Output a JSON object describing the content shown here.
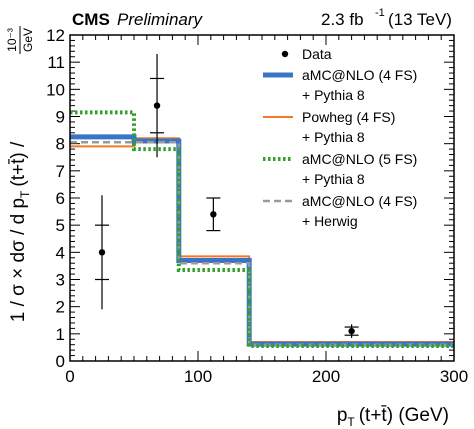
{
  "header": {
    "experiment": "CMS",
    "status": "Preliminary",
    "luminosity": "2.3 fb",
    "lumi_exponent": "-1",
    "energy": "(13 TeV)"
  },
  "chart_data": {
    "type": "line",
    "xlabel": "p",
    "xlabel_sub": "T",
    "xlabel_rest": "(t+t̄) (GeV)",
    "ylabel": "1 / σ × dσ / d p",
    "ylabel_sub": "T",
    "ylabel_rest": "(t+t̄) /",
    "ylabel_unit_num": "10⁻³",
    "ylabel_unit_den": "GeV",
    "xlim": [
      0,
      300
    ],
    "ylim": [
      0,
      12
    ],
    "xticks": [
      0,
      100,
      200,
      300
    ],
    "xtick_labels": [
      "0",
      "100",
      "200",
      "300"
    ],
    "yticks": [
      0,
      1,
      2,
      3,
      4,
      5,
      6,
      7,
      8,
      9,
      10,
      11,
      12
    ],
    "ytick_labels": [
      "0",
      "1",
      "2",
      "3",
      "4",
      "5",
      "6",
      "7",
      "8",
      "9",
      "10",
      "11",
      "12"
    ],
    "legend_position": "top-right",
    "data": {
      "name": "Data",
      "x": [
        25,
        68,
        112,
        220
      ],
      "y": [
        4.0,
        9.4,
        5.4,
        1.1
      ],
      "stat_err": [
        1.0,
        1.0,
        0.6,
        0.15
      ],
      "total_err": [
        2.1,
        1.9,
        0.6,
        0.25
      ],
      "x_err": [
        25,
        18,
        26,
        80
      ]
    },
    "series": [
      {
        "name": "Powheg (4 FS)",
        "name2": "+ Pythia 8",
        "color": "#f07828",
        "style": "solid",
        "bins": [
          0,
          50,
          85,
          140,
          300
        ],
        "values": [
          7.9,
          8.2,
          3.85,
          0.7
        ]
      },
      {
        "name": "aMC@NLO (4 FS)",
        "name2": "+ Pythia 8",
        "color": "#3a74c8",
        "style": "thick",
        "bins": [
          0,
          50,
          85,
          140,
          300
        ],
        "values": [
          8.25,
          8.1,
          3.7,
          0.62
        ]
      },
      {
        "name": "aMC@NLO (4 FS)",
        "name2": "+ Herwig",
        "color": "#999999",
        "style": "dashed",
        "bins": [
          0,
          50,
          85,
          140,
          300
        ],
        "values": [
          8.05,
          8.05,
          3.6,
          0.6
        ]
      },
      {
        "name": "aMC@NLO (5 FS)",
        "name2": "+ Pythia 8",
        "color": "#33a02c",
        "style": "dotted",
        "bins": [
          0,
          50,
          85,
          140,
          300
        ],
        "values": [
          9.15,
          7.8,
          3.35,
          0.55
        ]
      }
    ],
    "legend_order": [
      "Data",
      1,
      0,
      3,
      2
    ]
  }
}
